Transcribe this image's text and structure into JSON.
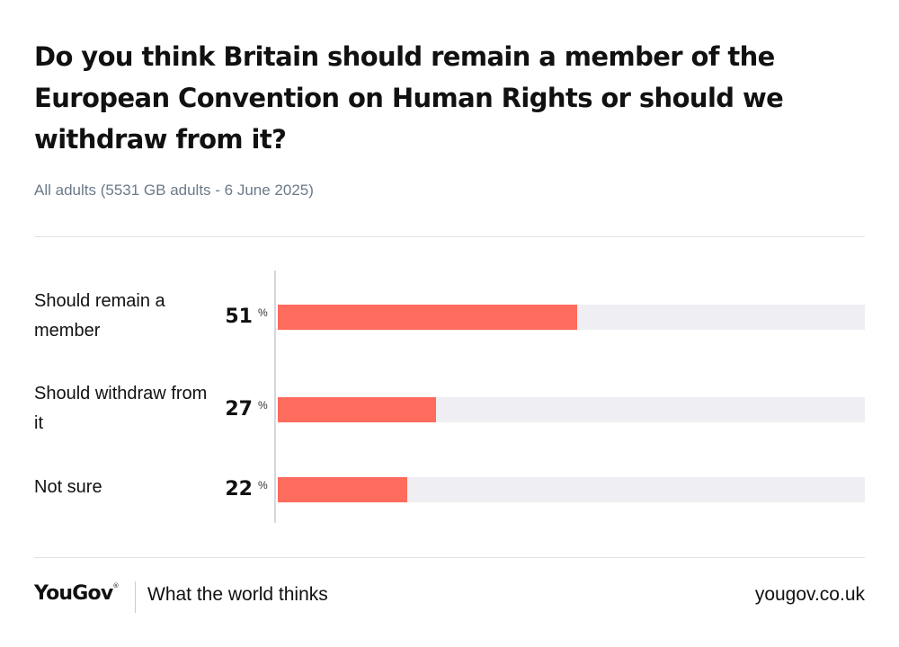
{
  "header": {
    "title": "Do you think Britain should remain a member of the European Convention on Human Rights or should we withdraw from it?",
    "subtitle": "All adults (5531 GB adults - 6 June 2025)"
  },
  "colors": {
    "bar": "#ff6b5c",
    "track": "#eeeef3",
    "subtitle": "#6b7a89"
  },
  "chart_data": {
    "type": "bar",
    "orientation": "horizontal",
    "title": "Do you think Britain should remain a member of the European Convention on Human Rights or should we withdraw from it?",
    "subtitle": "All adults (5531 GB adults - 6 June 2025)",
    "categories": [
      "Should remain a member",
      "Should withdraw from it",
      "Not sure"
    ],
    "values": [
      51,
      27,
      22
    ],
    "unit": "%",
    "xlim": [
      0,
      100
    ],
    "grid": false
  },
  "rows": [
    {
      "label": "Should remain a member",
      "value": "51",
      "unit": "%"
    },
    {
      "label": "Should withdraw from it",
      "value": "27",
      "unit": "%"
    },
    {
      "label": "Not sure",
      "value": "22",
      "unit": "%"
    }
  ],
  "footer": {
    "brand": "YouGov",
    "brand_mark": "®",
    "tagline": "What the world thinks",
    "url": "yougov.co.uk"
  }
}
